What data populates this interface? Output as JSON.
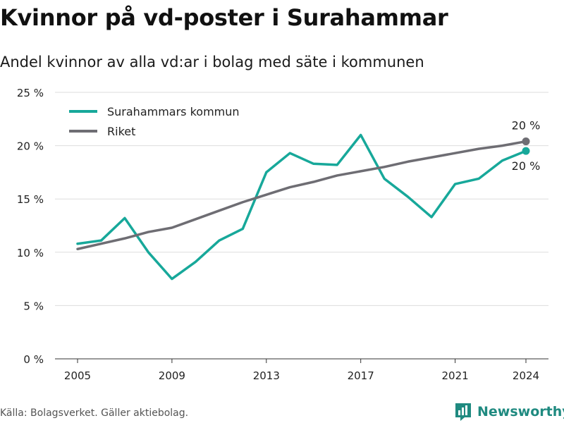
{
  "header": {
    "title": "Kvinnor på vd-poster i Surahammar",
    "subtitle": "Andel kvinnor av alla vd:ar i bolag med säte i kommunen"
  },
  "footer": {
    "source": "Källa: Bolagsverket. Gäller aktiebolag.",
    "brand": "Newsworthy"
  },
  "colors": {
    "surahammar": "#17a89a",
    "riket": "#6e6d73",
    "grid": "#dddddd",
    "brand": "#1f8a80"
  },
  "chart_data": {
    "type": "line",
    "x": [
      2005,
      2006,
      2007,
      2008,
      2009,
      2010,
      2011,
      2012,
      2013,
      2014,
      2015,
      2016,
      2017,
      2018,
      2019,
      2020,
      2021,
      2022,
      2023,
      2024
    ],
    "series": [
      {
        "name": "Surahammars kommun",
        "values": [
          10.8,
          11.1,
          13.2,
          10.0,
          7.5,
          9.1,
          11.1,
          12.2,
          17.5,
          19.3,
          18.3,
          18.2,
          21.0,
          16.9,
          15.2,
          13.3,
          16.4,
          16.9,
          18.6,
          19.5
        ],
        "end_label": "20 %"
      },
      {
        "name": "Riket",
        "values": [
          10.3,
          10.8,
          11.3,
          11.9,
          12.3,
          13.1,
          13.9,
          14.7,
          15.4,
          16.1,
          16.6,
          17.2,
          17.6,
          18.0,
          18.5,
          18.9,
          19.3,
          19.7,
          20.0,
          20.4
        ],
        "end_label": "20 %"
      }
    ],
    "x_ticks": [
      "2005",
      "2009",
      "2013",
      "2017",
      "2021",
      "2024"
    ],
    "y_ticks": [
      "0 %",
      "5 %",
      "10 %",
      "15 %",
      "20 %",
      "25 %"
    ],
    "ylim": [
      0,
      25
    ],
    "xlim": [
      2005,
      2024
    ],
    "grid": true,
    "legend_position": "top-left",
    "xlabel": "",
    "ylabel": ""
  }
}
